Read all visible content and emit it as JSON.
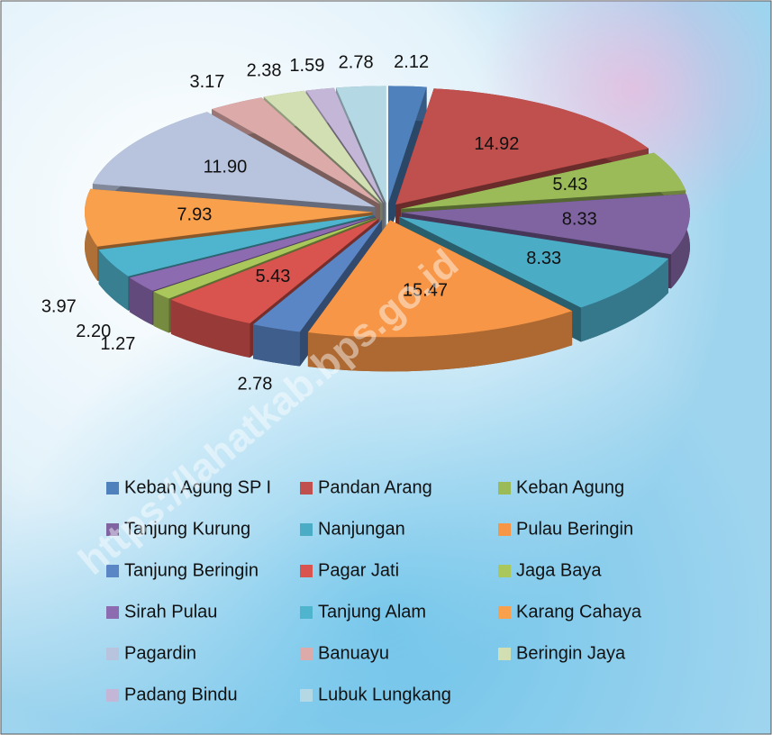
{
  "chart_data": {
    "type": "pie",
    "categories": [
      "Keban Agung SP I",
      "Pandan Arang",
      "Keban Agung",
      "Tanjung Kurung",
      "Nanjungan",
      "Pulau Beringin",
      "Tanjung Beringin",
      "Pagar Jati",
      "Jaga Baya",
      "Sirah Pulau",
      "Tanjung Alam",
      "Karang Cahaya",
      "Pagardin",
      "Banuayu",
      "Beringin Jaya",
      "Padang Bindu",
      "Lubuk Lungkang"
    ],
    "values": [
      2.12,
      14.92,
      5.43,
      8.33,
      8.33,
      15.47,
      2.78,
      5.43,
      1.27,
      2.2,
      3.97,
      7.93,
      11.9,
      3.17,
      2.38,
      1.59,
      2.78
    ],
    "value_labels": [
      "2.12",
      "14.92",
      "5.43",
      "8.33",
      "8.33",
      "15.47",
      "2.78",
      "5.43",
      "1.27",
      "2.20",
      "3.97",
      "7.93",
      "11.90",
      "3.17",
      "2.38",
      "1.59",
      "2.78"
    ],
    "colors": [
      "#4f81bd",
      "#c0504d",
      "#9bbb59",
      "#8064a2",
      "#4bacc6",
      "#f79646",
      "#5a86c6",
      "#d9534f",
      "#a9c75a",
      "#8c6bb1",
      "#4fb5cf",
      "#f9a04d",
      "#b8c3de",
      "#dcaaa8",
      "#d2dfb3",
      "#c4b6d6",
      "#b4d8e4"
    ],
    "legend": "bottom",
    "watermark": "https://lahatkab.bps.go.id"
  }
}
